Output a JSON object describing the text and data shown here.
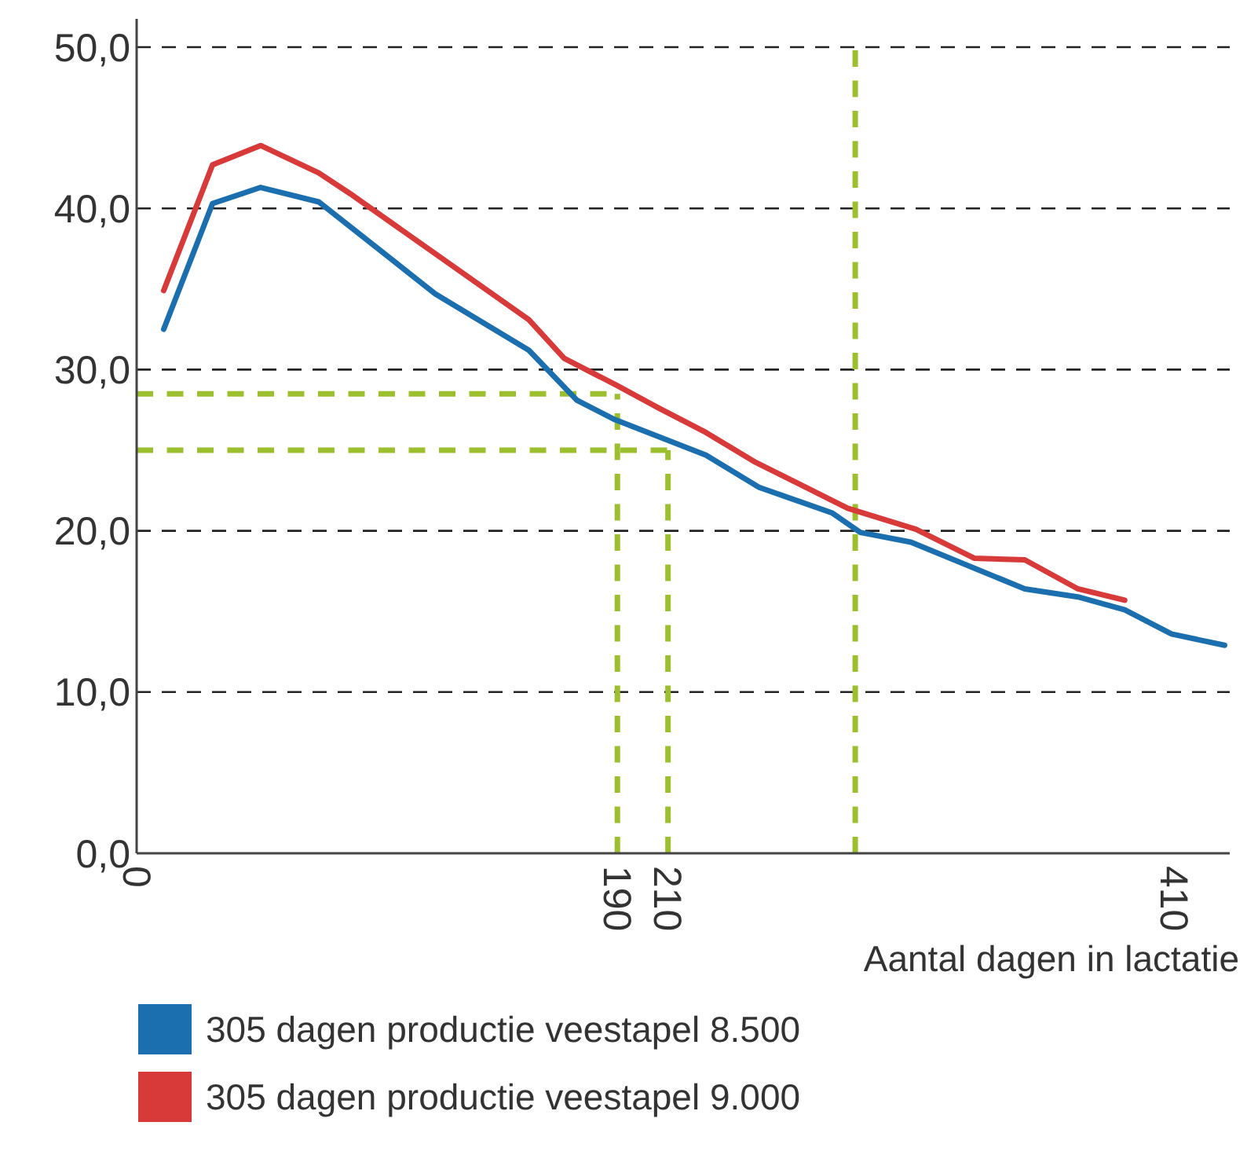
{
  "chart_data": {
    "type": "line",
    "xlabel": "Aantal dagen in lactatie",
    "xlim": [
      0,
      432
    ],
    "xticks": [
      0,
      190,
      210,
      410
    ],
    "ylim": [
      0,
      50
    ],
    "yticks": [
      {
        "value": 0,
        "label": "0,0"
      },
      {
        "value": 10,
        "label": "10,0"
      },
      {
        "value": 20,
        "label": "20,0"
      },
      {
        "value": 30,
        "label": "30,0"
      },
      {
        "value": 40,
        "label": "40,0"
      },
      {
        "value": 50,
        "label": "50,0"
      }
    ],
    "grid": "y",
    "legend": "bottom",
    "line_style": "solid",
    "marker": "none",
    "series": [
      {
        "name": "305 dagen productie veestapel 8.500",
        "color": "#1b6fae",
        "x": [
          10.7,
          30,
          49,
          72,
          118,
          155,
          174,
          189,
          225,
          246,
          275,
          286,
          306,
          351,
          372,
          390.5,
          409,
          430
        ],
        "values": [
          32.5,
          40.3,
          41.3,
          40.4,
          34.7,
          31.2,
          28.1,
          26.9,
          24.7,
          22.7,
          21.1,
          19.9,
          19.3,
          16.4,
          15.9,
          15.1,
          13.6,
          12.9
        ]
      },
      {
        "name": "305 dagen productie veestapel 9.000",
        "color": "#d83a3a",
        "x": [
          10.7,
          30,
          49,
          72,
          84.5,
          155,
          169,
          190,
          206.5,
          225,
          244,
          281,
          308,
          331,
          351,
          372,
          390.5
        ],
        "values": [
          34.9,
          42.7,
          43.9,
          42.2,
          40.9,
          33.1,
          30.7,
          29.0,
          27.6,
          26.1,
          24.3,
          21.4,
          20.1,
          18.3,
          18.2,
          16.4,
          15.7
        ]
      }
    ],
    "ref_lines": [
      {
        "axis": "y",
        "value": 28.5,
        "color": "#9cbf2e",
        "line_style": "dashed"
      },
      {
        "axis": "y",
        "value": 25,
        "color": "#9cbf2e",
        "line_style": "dashed"
      },
      {
        "axis": "x",
        "value": 190,
        "color": "#9cbf2e",
        "line_style": "dashed"
      },
      {
        "axis": "x",
        "value": 210,
        "color": "#9cbf2e",
        "line_style": "dashed"
      },
      {
        "axis": "x",
        "value": 284,
        "color": "#9cbf2e",
        "line_style": "dashed"
      }
    ]
  }
}
